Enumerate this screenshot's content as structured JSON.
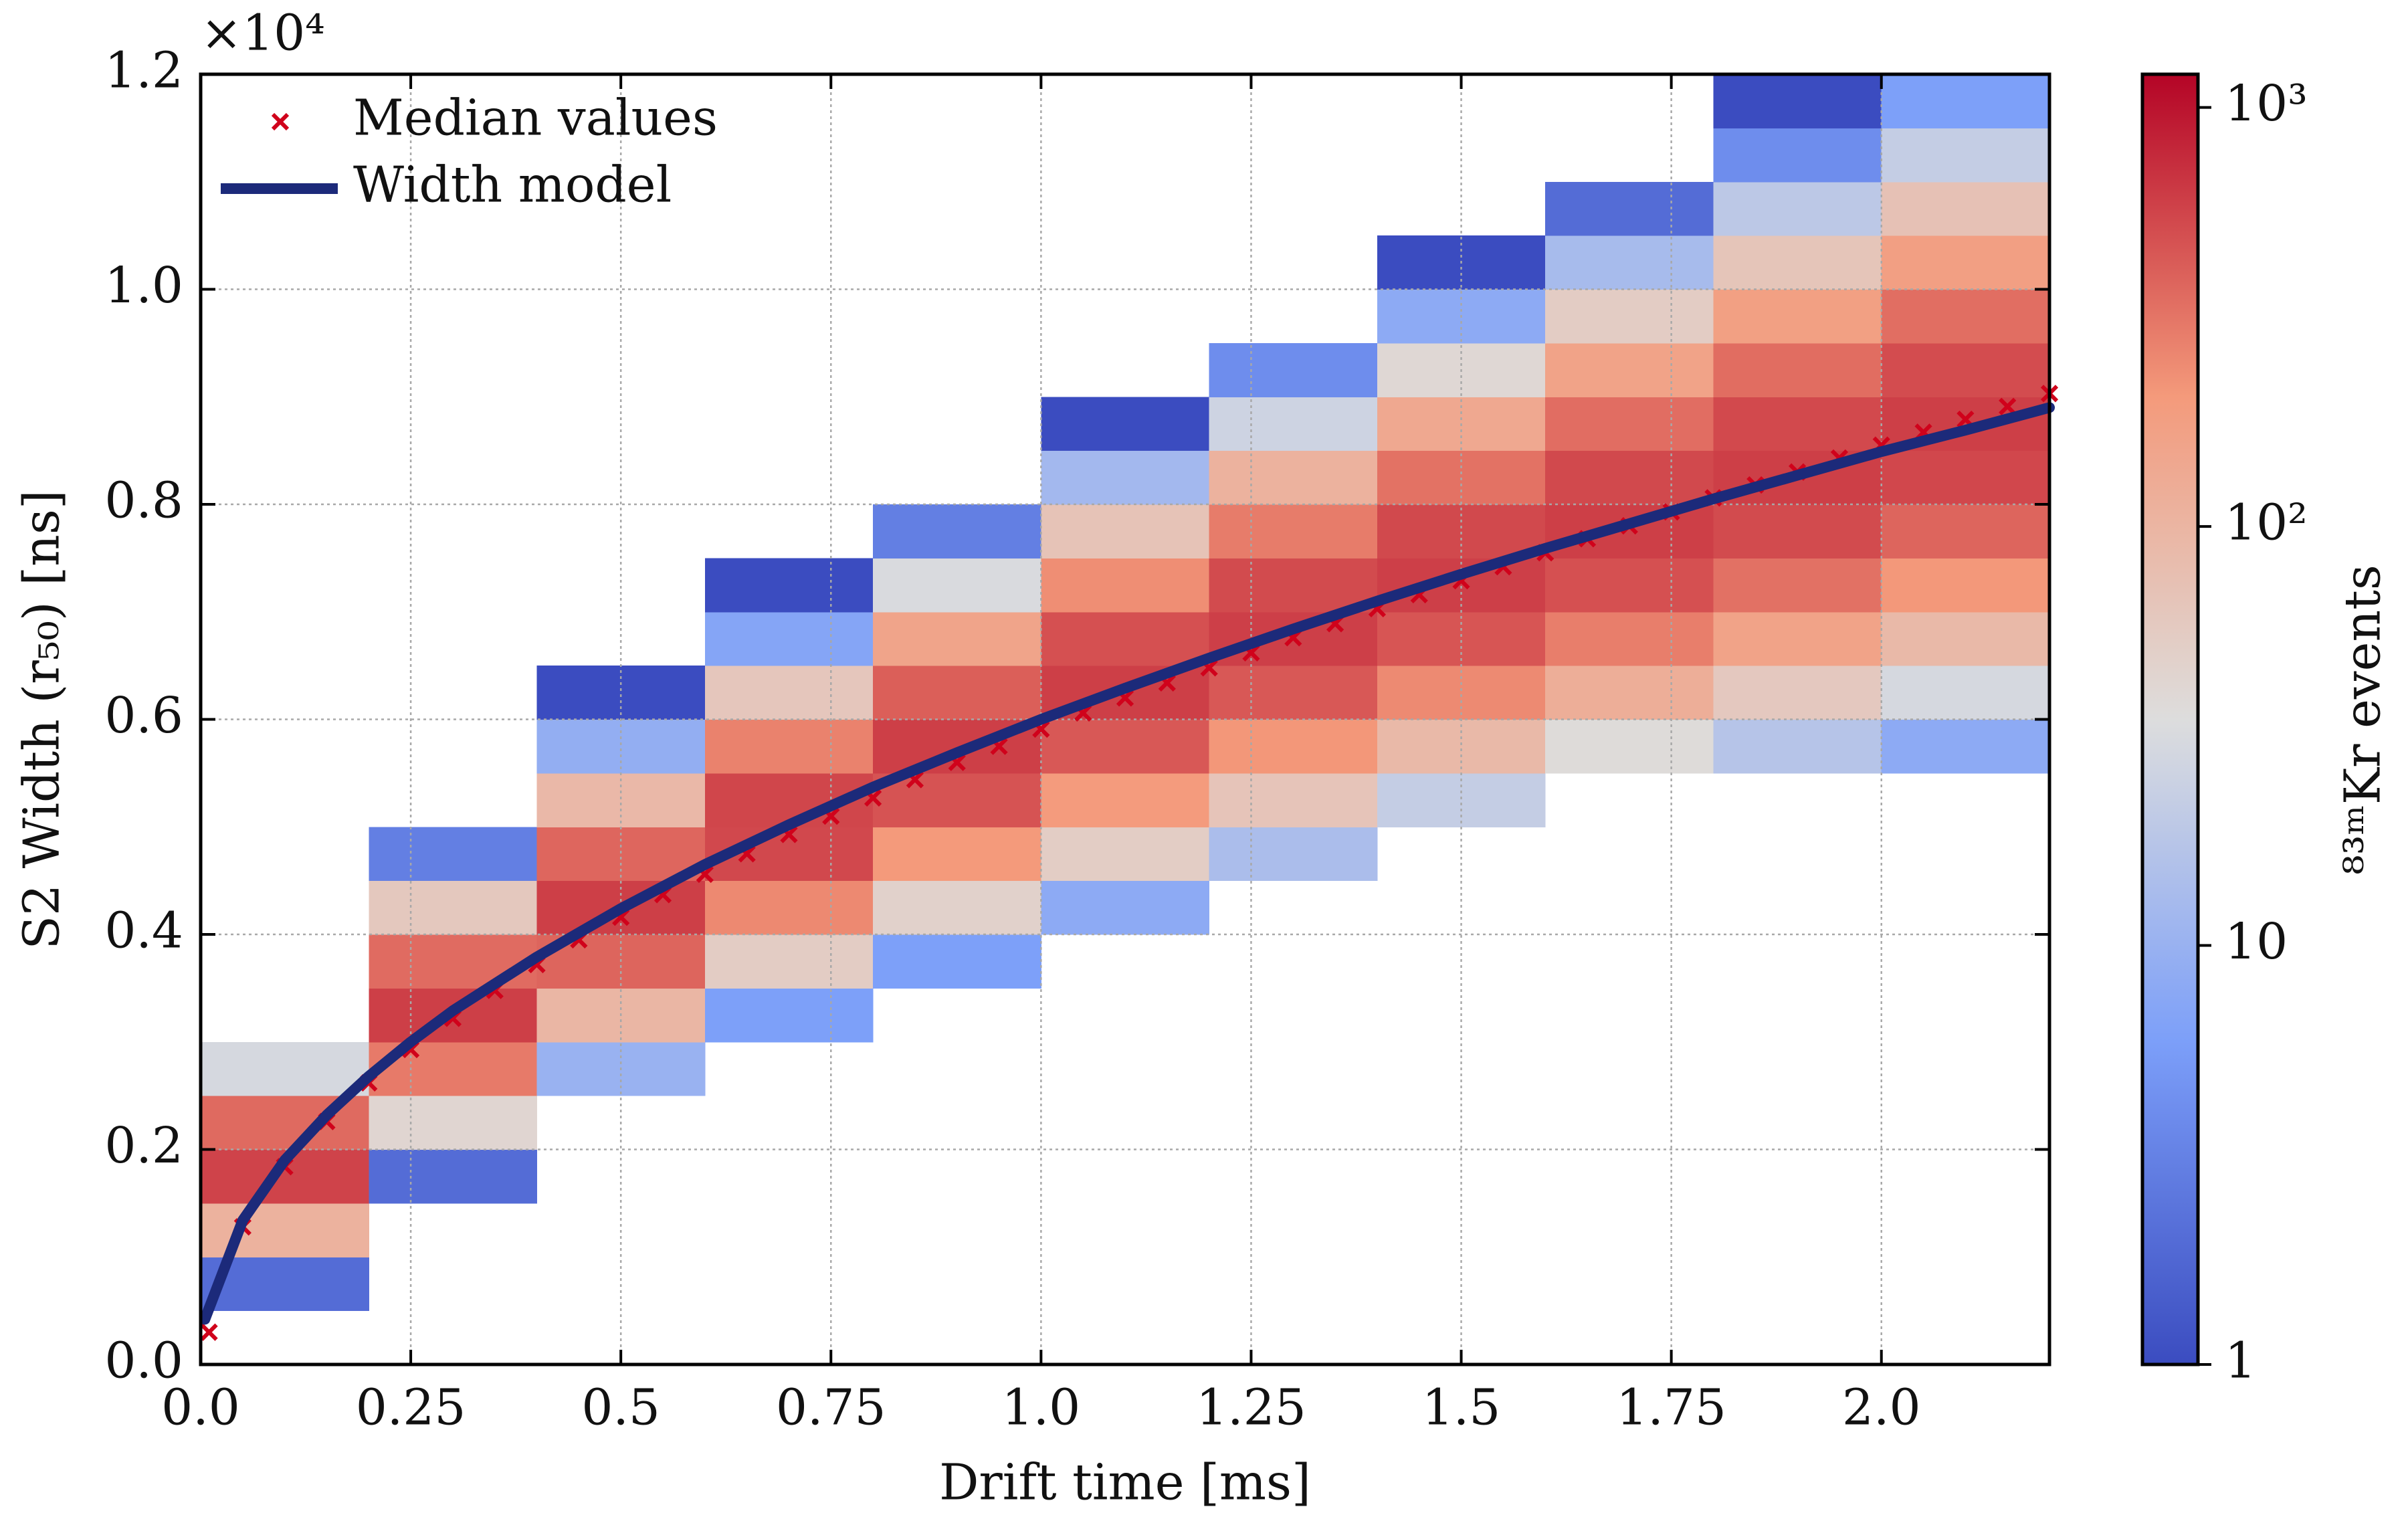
{
  "chart_data": {
    "type": "hist2d",
    "xlabel": "Drift time [ms]",
    "ylabel": "S2 Width (r₅₀) [ns]",
    "y_offset_label": "×10⁴",
    "xlim": [
      0,
      2.2
    ],
    "ylim": [
      0,
      1.2
    ],
    "xticks": [
      {
        "value": 0,
        "label": "0.0"
      },
      0.25,
      0.5,
      0.75,
      {
        "value": 1,
        "label": "1.0"
      },
      1.25,
      1.5,
      1.75,
      {
        "value": 2,
        "label": "2.0"
      }
    ],
    "yticks": [
      {
        "value": 0,
        "label": "0.0"
      },
      0.2,
      0.4,
      0.6,
      0.8,
      {
        "value": 1,
        "label": "1.0"
      },
      1.2
    ],
    "grid": true,
    "legend": "upper left",
    "heatmap": {
      "xbins": [
        0,
        0.2,
        0.4,
        0.6,
        0.8,
        1.0,
        1.2,
        1.4,
        1.6,
        1.8,
        2.0,
        2.2
      ],
      "ybins": [
        0,
        0.05,
        0.1,
        0.15,
        0.2,
        0.25,
        0.3,
        0.35,
        0.4,
        0.45,
        0.5,
        0.55,
        0.6,
        0.65,
        0.7,
        0.75,
        0.8,
        0.85,
        0.9,
        0.95,
        1.0,
        1.05,
        1.1,
        1.15,
        1.2
      ],
      "counts": [
        [
          0,
          2,
          108,
          570,
          360,
          30,
          0,
          0,
          0,
          0,
          0,
          0,
          0,
          0,
          0,
          0,
          0,
          0,
          0,
          0,
          0,
          0,
          0,
          0
        ],
        [
          0,
          0,
          0,
          2,
          43,
          296,
          598,
          354,
          61,
          3,
          0,
          0,
          0,
          0,
          0,
          0,
          0,
          0,
          0,
          0,
          0,
          0,
          0,
          0
        ],
        [
          0,
          0,
          0,
          0,
          0,
          10,
          97,
          382,
          600,
          375,
          91,
          9,
          1,
          0,
          0,
          0,
          0,
          0,
          0,
          0,
          0,
          0,
          0,
          0
        ],
        [
          0,
          0,
          0,
          0,
          0,
          0,
          6,
          54,
          249,
          535,
          553,
          271,
          63,
          7,
          1,
          0,
          0,
          0,
          0,
          0,
          0,
          0,
          0,
          0
        ],
        [
          0,
          0,
          0,
          0,
          0,
          0,
          0,
          6,
          48,
          204,
          473,
          598,
          411,
          155,
          32,
          3,
          0,
          0,
          0,
          0,
          0,
          0,
          0,
          0
        ],
        [
          0,
          0,
          0,
          0,
          0,
          0,
          0,
          0,
          8,
          53,
          198,
          443,
          599,
          486,
          236,
          69,
          12,
          1,
          0,
          0,
          0,
          0,
          0,
          0
        ],
        [
          0,
          0,
          0,
          0,
          0,
          0,
          0,
          0,
          0,
          14,
          67,
          212,
          443,
          596,
          519,
          292,
          108,
          26,
          4,
          0,
          0,
          0,
          0,
          0
        ],
        [
          0,
          0,
          0,
          0,
          0,
          0,
          0,
          0,
          0,
          0,
          22,
          90,
          245,
          460,
          596,
          532,
          327,
          140,
          41,
          8,
          1,
          0,
          0,
          0
        ],
        [
          0,
          0,
          0,
          0,
          0,
          0,
          0,
          0,
          0,
          0,
          0,
          37,
          120,
          285,
          486,
          598,
          532,
          346,
          162,
          54,
          13,
          2,
          0,
          0
        ],
        [
          0,
          0,
          0,
          0,
          0,
          0,
          0,
          0,
          0,
          0,
          0,
          17,
          60,
          162,
          332,
          516,
          600,
          528,
          349,
          175,
          66,
          19,
          4,
          1
        ],
        [
          0,
          0,
          0,
          0,
          0,
          0,
          0,
          0,
          0,
          0,
          0,
          8,
          30,
          90,
          209,
          382,
          543,
          599,
          512,
          341,
          178,
          72,
          22,
          6
        ]
      ]
    },
    "colorbar": {
      "label": "⁸³ᵐKr events",
      "scale": "log",
      "colormap": "coolwarm",
      "lim": [
        1,
        1200
      ],
      "ticks": [
        1,
        10,
        {
          "value": 100,
          "label": "10²"
        },
        {
          "value": 1000,
          "label": "10³"
        }
      ]
    },
    "series": [
      {
        "name": "Median values",
        "type": "scatter",
        "marker": "x",
        "color": "#d0021b",
        "x": [
          0.01,
          0.05,
          0.1,
          0.15,
          0.2,
          0.25,
          0.3,
          0.35,
          0.4,
          0.45,
          0.5,
          0.55,
          0.6,
          0.65,
          0.7,
          0.75,
          0.8,
          0.85,
          0.9,
          0.95,
          1.0,
          1.05,
          1.1,
          1.15,
          1.2,
          1.25,
          1.3,
          1.35,
          1.4,
          1.45,
          1.5,
          1.55,
          1.6,
          1.65,
          1.7,
          1.75,
          1.8,
          1.85,
          1.9,
          1.95,
          2.0,
          2.05,
          2.1,
          2.15,
          2.2
        ],
        "values": [
          0.03,
          0.128,
          0.184,
          0.226,
          0.262,
          0.293,
          0.322,
          0.348,
          0.372,
          0.395,
          0.416,
          0.437,
          0.456,
          0.475,
          0.493,
          0.51,
          0.527,
          0.544,
          0.56,
          0.575,
          0.591,
          0.606,
          0.62,
          0.634,
          0.648,
          0.662,
          0.676,
          0.689,
          0.703,
          0.716,
          0.729,
          0.742,
          0.755,
          0.768,
          0.78,
          0.793,
          0.806,
          0.818,
          0.83,
          0.843,
          0.855,
          0.867,
          0.879,
          0.891,
          0.903
        ]
      },
      {
        "name": "Width model",
        "type": "line",
        "color": "#1c2a7a",
        "x": [
          0.005,
          0.05,
          0.1,
          0.15,
          0.2,
          0.25,
          0.3,
          0.4,
          0.5,
          0.6,
          0.7,
          0.8,
          0.9,
          1.0,
          1.1,
          1.2,
          1.3,
          1.4,
          1.5,
          1.6,
          1.7,
          1.8,
          1.9,
          2.0,
          2.1,
          2.2
        ],
        "values": [
          0.042,
          0.134,
          0.19,
          0.232,
          0.268,
          0.3,
          0.329,
          0.379,
          0.424,
          0.465,
          0.502,
          0.537,
          0.569,
          0.6,
          0.629,
          0.657,
          0.684,
          0.71,
          0.735,
          0.759,
          0.782,
          0.805,
          0.827,
          0.849,
          0.869,
          0.89
        ]
      }
    ]
  }
}
